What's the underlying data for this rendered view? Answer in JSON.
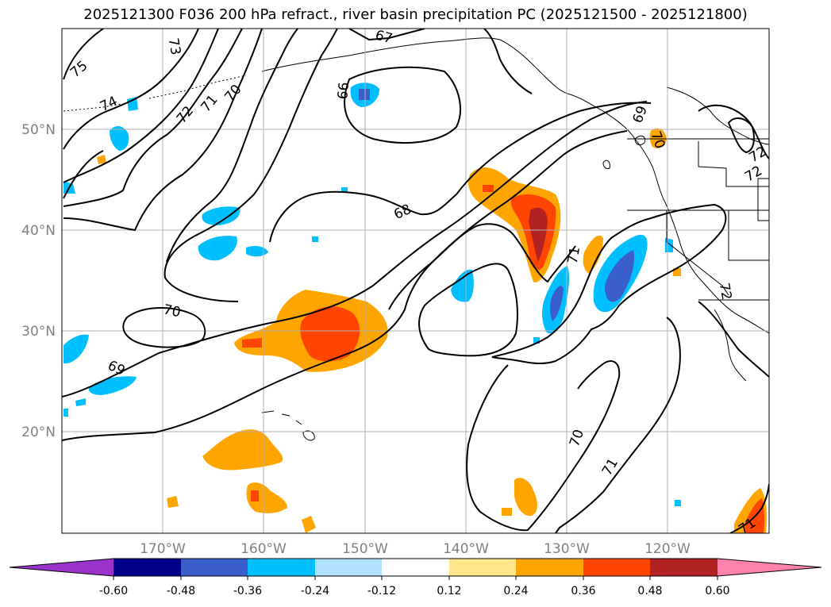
{
  "title": "2025121300 F036 200 hPa refract., river basin precipitation PC (2025121500 - 2025121800)",
  "lat_labels": [
    "50°N",
    "40°N",
    "30°N",
    "20°N"
  ],
  "lon_labels": [
    "170°W",
    "160°W",
    "150°W",
    "140°W",
    "130°W",
    "120°W"
  ],
  "contour_labels": [
    "75",
    "74",
    "73",
    "72",
    "71",
    "70",
    "67",
    "66",
    "69",
    "70",
    "72",
    "68",
    "71",
    "70",
    "69",
    "70",
    "71",
    "71",
    "72",
    "72"
  ],
  "colorbar": {
    "ticks": [
      "-0.60",
      "-0.48",
      "-0.36",
      "-0.24",
      "-0.12",
      "0.12",
      "0.24",
      "0.36",
      "0.48",
      "0.60"
    ],
    "colors": [
      "#9933cc",
      "#00008b",
      "#3a5fcd",
      "#00bfff",
      "#b0e2ff",
      "#ffffff",
      "#ffe68c",
      "#ffa500",
      "#ff4500",
      "#b22222",
      "#ff82ab"
    ]
  }
}
